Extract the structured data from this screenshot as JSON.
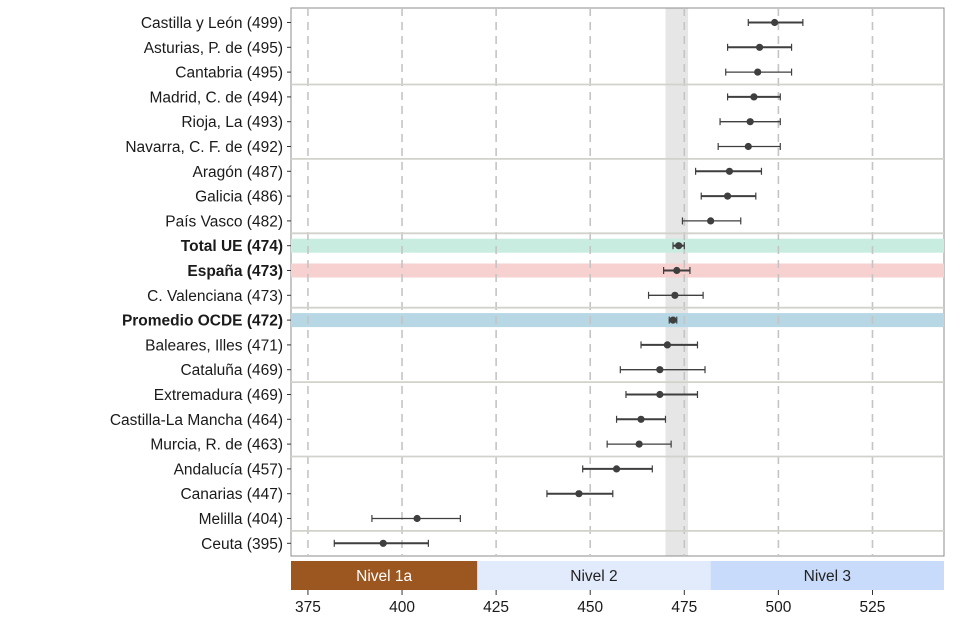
{
  "chart_data": {
    "type": "scatter",
    "subtype": "dot-with-error-bars",
    "title": "",
    "xlabel": "",
    "ylabel": "",
    "xlim": [
      370.5,
      544
    ],
    "xticks": [
      375,
      400,
      425,
      450,
      475,
      500,
      525
    ],
    "grid": "dashed vertical at ticks",
    "reference_band": {
      "from": 470,
      "to": 476,
      "color": "#e6e6e6"
    },
    "rows": [
      {
        "label": "Castilla y León (499)",
        "value": 499,
        "low": 492,
        "high": 506.5,
        "bold": false,
        "highlight": null,
        "thick": true
      },
      {
        "label": "Asturias, P. de (495)",
        "value": 495,
        "low": 486.5,
        "high": 503.5,
        "bold": false,
        "highlight": null,
        "thick": true
      },
      {
        "label": "Cantabria (495)",
        "value": 494.5,
        "low": 486,
        "high": 503.5,
        "bold": false,
        "highlight": null,
        "thick": false
      },
      {
        "label": "Madrid, C. de (494)",
        "value": 493.5,
        "low": 486.5,
        "high": 500.5,
        "bold": false,
        "highlight": null,
        "thick": true
      },
      {
        "label": "Rioja, La (493)",
        "value": 492.5,
        "low": 484.5,
        "high": 500.5,
        "bold": false,
        "highlight": null,
        "thick": false
      },
      {
        "label": "Navarra, C. F. de (492)",
        "value": 492,
        "low": 484,
        "high": 500.5,
        "bold": false,
        "highlight": null,
        "thick": false
      },
      {
        "label": "Aragón (487)",
        "value": 487,
        "low": 478,
        "high": 495.5,
        "bold": false,
        "highlight": null,
        "thick": true
      },
      {
        "label": "Galicia (486)",
        "value": 486.5,
        "low": 479.5,
        "high": 494,
        "bold": false,
        "highlight": null,
        "thick": true
      },
      {
        "label": "País Vasco (482)",
        "value": 482,
        "low": 474.5,
        "high": 490,
        "bold": false,
        "highlight": null,
        "thick": false
      },
      {
        "label": "Total UE (474)",
        "value": 473.5,
        "low": 472,
        "high": 475,
        "bold": true,
        "highlight": "#c8ece0",
        "thick": true
      },
      {
        "label": "España (473)",
        "value": 473,
        "low": 469.5,
        "high": 476.5,
        "bold": true,
        "highlight": "#f6d1d0",
        "thick": true
      },
      {
        "label": "C. Valenciana (473)",
        "value": 472.5,
        "low": 465.5,
        "high": 480,
        "bold": false,
        "highlight": null,
        "thick": false
      },
      {
        "label": "Promedio OCDE (472)",
        "value": 472,
        "low": 471,
        "high": 473,
        "bold": true,
        "highlight": "#b6d7e3",
        "thick": true
      },
      {
        "label": "Baleares, Illes (471)",
        "value": 470.5,
        "low": 463.5,
        "high": 478.5,
        "bold": false,
        "highlight": null,
        "thick": true
      },
      {
        "label": "Cataluña (469)",
        "value": 468.5,
        "low": 458,
        "high": 480.5,
        "bold": false,
        "highlight": null,
        "thick": false
      },
      {
        "label": "Extremadura (469)",
        "value": 468.5,
        "low": 459.5,
        "high": 478.5,
        "bold": false,
        "highlight": null,
        "thick": true
      },
      {
        "label": "Castilla-La Mancha (464)",
        "value": 463.5,
        "low": 457,
        "high": 470,
        "bold": false,
        "highlight": null,
        "thick": true
      },
      {
        "label": "Murcia, R. de (463)",
        "value": 463,
        "low": 454.5,
        "high": 471.5,
        "bold": false,
        "highlight": null,
        "thick": false
      },
      {
        "label": "Andalucía (457)",
        "value": 457,
        "low": 448,
        "high": 466.5,
        "bold": false,
        "highlight": null,
        "thick": true
      },
      {
        "label": "Canarias (447)",
        "value": 447,
        "low": 438.5,
        "high": 456,
        "bold": false,
        "highlight": null,
        "thick": true
      },
      {
        "label": "Melilla (404)",
        "value": 404,
        "low": 392,
        "high": 415.5,
        "bold": false,
        "highlight": null,
        "thick": false
      },
      {
        "label": "Ceuta (395)",
        "value": 395,
        "low": 382,
        "high": 407,
        "bold": false,
        "highlight": null,
        "thick": true
      }
    ],
    "separators_after_row": [
      2,
      5,
      8,
      11,
      14,
      17,
      20
    ],
    "levels": [
      {
        "label": "Nivel 1a",
        "from": 370.5,
        "to": 420,
        "color": "#9c5620",
        "text_color": "#ffffff"
      },
      {
        "label": "Nivel 2",
        "from": 420,
        "to": 482,
        "color": "#e2ebfc",
        "text_color": "#222222"
      },
      {
        "label": "Nivel 3",
        "from": 482,
        "to": 544,
        "color": "#c8dbfb",
        "text_color": "#222222"
      }
    ]
  }
}
